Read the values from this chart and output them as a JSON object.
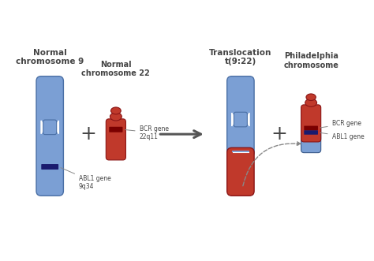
{
  "bg_color": "#ffffff",
  "chr9_blue": "#7b9fd4",
  "chr9_blue_dark": "#4a6fa5",
  "chr9_outline": "#3a5a8a",
  "chr22_red": "#c0392b",
  "chr22_red_light": "#d45a4a",
  "chr22_dark": "#7a0000",
  "abl1_color": "#1a1a6e",
  "label_color": "#444444",
  "arrow_color": "#555555",
  "plus_color": "#444444",
  "title_left": "Normal\nchromosome 9",
  "title_right": "Translocation\nt(9:22)",
  "label_chr22": "Normal\nchromosome 22",
  "label_phila": "Philadelphia\nchromosome",
  "label_bcr": "BCR gene\n22q11",
  "label_abl1": "ABL1 gene\n9q34",
  "label_bcr2": "BCR gene",
  "label_abl2": "ABL1 gene",
  "dashed_arrow_color": "#888888"
}
